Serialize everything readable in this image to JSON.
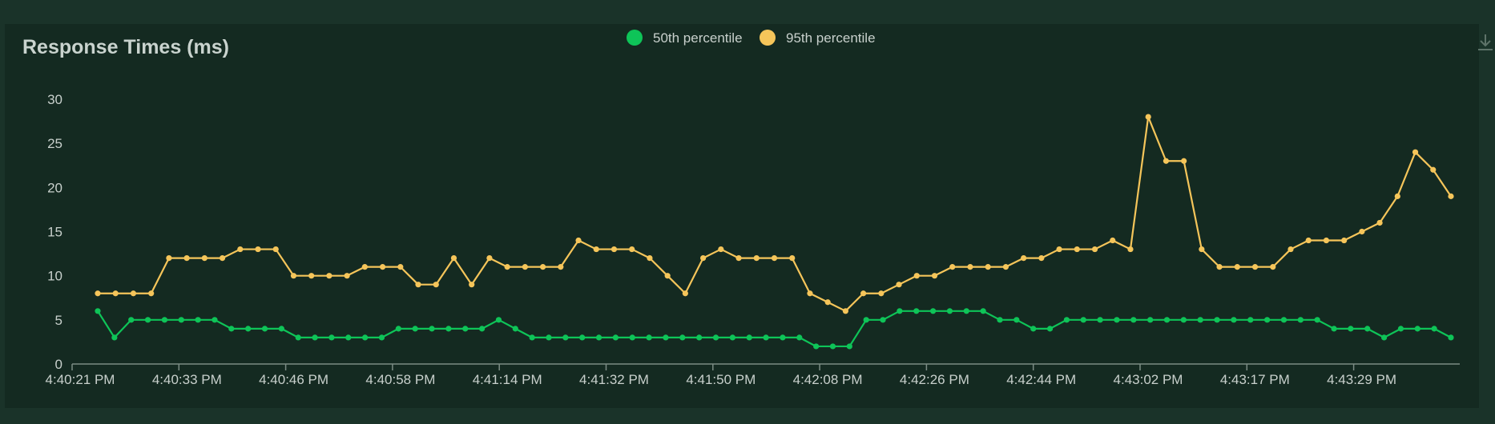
{
  "chart_data": {
    "type": "line",
    "title": "Response Times (ms)",
    "legend_position": "top-center",
    "ylim": [
      0,
      30
    ],
    "y_ticks": [
      0,
      5,
      10,
      15,
      20,
      25,
      30
    ],
    "x_tick_labels": [
      "4:40:21 PM",
      "4:40:33 PM",
      "4:40:46 PM",
      "4:40:58 PM",
      "4:41:14 PM",
      "4:41:32 PM",
      "4:41:50 PM",
      "4:42:08 PM",
      "4:42:26 PM",
      "4:42:44 PM",
      "4:43:02 PM",
      "4:43:17 PM",
      "4:43:29 PM"
    ],
    "grid": false,
    "series": [
      {
        "name": "50th percentile",
        "color": "#0ec458",
        "values": [
          6,
          3,
          5,
          5,
          5,
          5,
          5,
          5,
          4,
          4,
          4,
          4,
          3,
          3,
          3,
          3,
          3,
          3,
          4,
          4,
          4,
          4,
          4,
          4,
          5,
          4,
          3,
          3,
          3,
          3,
          3,
          3,
          3,
          3,
          3,
          3,
          3,
          3,
          3,
          3,
          3,
          3,
          3,
          2,
          2,
          2,
          5,
          5,
          6,
          6,
          6,
          6,
          6,
          6,
          5,
          5,
          4,
          4,
          5,
          5,
          5,
          5,
          5,
          5,
          5,
          5,
          5,
          5,
          5,
          5,
          5,
          5,
          5,
          5,
          4,
          4,
          4,
          3,
          4,
          4,
          4,
          3
        ]
      },
      {
        "name": "95th percentile",
        "color": "#f5c55a",
        "values": [
          8,
          8,
          8,
          8,
          12,
          12,
          12,
          12,
          13,
          13,
          13,
          10,
          10,
          10,
          10,
          11,
          11,
          11,
          9,
          9,
          12,
          9,
          12,
          11,
          11,
          11,
          11,
          14,
          13,
          13,
          13,
          12,
          10,
          8,
          12,
          13,
          12,
          12,
          12,
          12,
          8,
          7,
          6,
          8,
          8,
          9,
          10,
          10,
          11,
          11,
          11,
          11,
          12,
          12,
          13,
          13,
          13,
          14,
          13,
          28,
          23,
          23,
          13,
          11,
          11,
          11,
          11,
          13,
          14,
          14,
          14,
          15,
          16,
          19,
          24,
          22,
          19
        ]
      }
    ]
  },
  "toolbar": {
    "download_icon": "download-icon"
  }
}
